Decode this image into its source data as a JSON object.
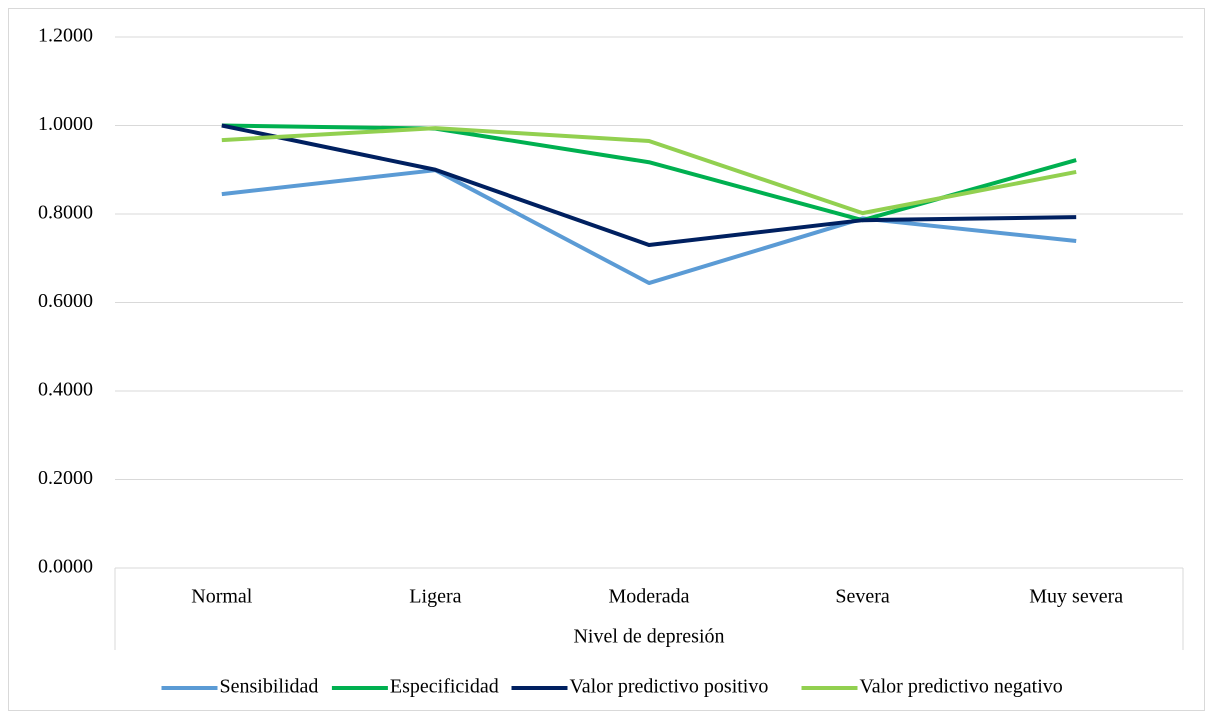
{
  "chart_data": {
    "type": "line",
    "x_label": "Nivel de depresión",
    "categories": [
      "Normal",
      "Ligera",
      "Moderada",
      "Severa",
      "Muy severa"
    ],
    "series": [
      {
        "name": "Sensibilidad",
        "color": "#5b9bd5",
        "values": [
          0.845,
          0.899,
          0.644,
          0.79,
          0.739
        ]
      },
      {
        "name": "Especificidad",
        "color": "#00b050",
        "values": [
          1.0,
          0.993,
          0.917,
          0.786,
          0.922
        ]
      },
      {
        "name": "Valor predictivo positivo",
        "color": "#002060",
        "values": [
          1.0,
          0.9,
          0.73,
          0.786,
          0.793
        ]
      },
      {
        "name": "Valor predictivo negativo",
        "color": "#92d050",
        "values": [
          0.967,
          0.994,
          0.965,
          0.802,
          0.895
        ]
      }
    ],
    "ylim": [
      0,
      1.2
    ],
    "yticks": [
      {
        "value": 0,
        "label": "0.0000"
      },
      {
        "value": 0.2,
        "label": "0.2000"
      },
      {
        "value": 0.4,
        "label": "0.4000"
      },
      {
        "value": 0.6,
        "label": "0.6000"
      },
      {
        "value": 0.8,
        "label": "0.8000"
      },
      {
        "value": 1.0,
        "label": "1.0000"
      },
      {
        "value": 1.2,
        "label": "1.2000"
      }
    ],
    "grid": true,
    "legend": "bottom"
  }
}
